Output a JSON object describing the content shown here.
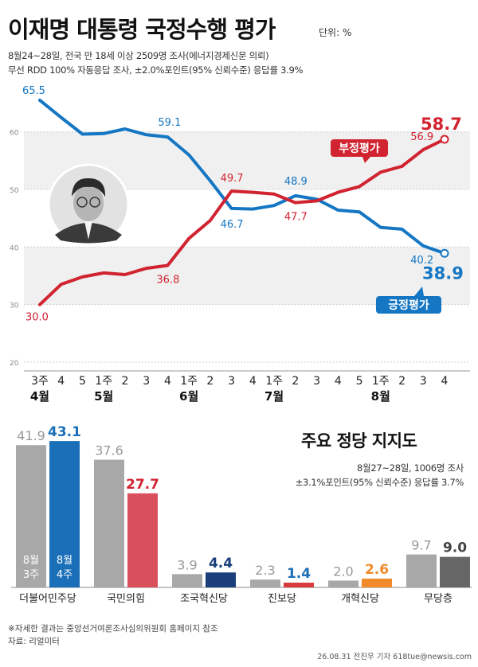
{
  "header": {
    "title": "이재명 대통령 국정수행 평가",
    "unit": "단위: %",
    "sub1": "8월24~28일, 전국 만 18세 이상 2509명 조사(에너지경제신문 의뢰)",
    "sub2": "무선 RDD 100% 자동응답 조사, ±2.0%포인트(95% 신뢰수준) 응답률 3.9%"
  },
  "colors": {
    "positive": "#1577c4",
    "negative": "#d12330",
    "gridband": "#f0f0f0",
    "bar_prev": "#a8a8a8"
  },
  "chart_data": [
    {
      "type": "line",
      "x": [
        "3주",
        "4",
        "5",
        "1주",
        "2",
        "3",
        "4",
        "1주",
        "2",
        "3",
        "4",
        "1주",
        "2",
        "3",
        "4",
        "5",
        "1주",
        "2",
        "3",
        "4"
      ],
      "x_groups": [
        {
          "label": "4월",
          "index": 0
        },
        {
          "label": "5월",
          "index": 3
        },
        {
          "label": "6월",
          "index": 7
        },
        {
          "label": "7월",
          "index": 11
        },
        {
          "label": "8월",
          "index": 16
        }
      ],
      "ylim": [
        20,
        67
      ],
      "yticks": [
        20,
        30,
        40,
        50,
        60
      ],
      "series": [
        {
          "name": "긍정평가",
          "color": "#1577c4",
          "values": [
            65.5,
            62.5,
            59.6,
            59.7,
            60.5,
            59.5,
            59.1,
            56.0,
            51.5,
            46.7,
            46.6,
            47.2,
            48.9,
            48.3,
            46.4,
            46.1,
            43.4,
            43.1,
            40.2,
            38.9
          ]
        },
        {
          "name": "부정평가",
          "color": "#d12330",
          "values": [
            30.0,
            33.5,
            34.8,
            35.5,
            35.2,
            36.3,
            36.8,
            41.5,
            44.6,
            49.7,
            49.5,
            49.2,
            47.7,
            48.0,
            49.5,
            50.5,
            53.0,
            54.0,
            56.9,
            58.7
          ]
        }
      ],
      "labels": {
        "positive": [
          {
            "index": 0,
            "text": "65.5"
          },
          {
            "index": 6,
            "text": "59.1"
          },
          {
            "index": 9,
            "text": "46.7"
          },
          {
            "index": 12,
            "text": "48.9"
          },
          {
            "index": 18,
            "text": "40.2"
          },
          {
            "index": 19,
            "text": "38.9"
          }
        ],
        "negative": [
          {
            "index": 0,
            "text": "30.0"
          },
          {
            "index": 6,
            "text": "36.8"
          },
          {
            "index": 9,
            "text": "49.7"
          },
          {
            "index": 12,
            "text": "47.7"
          },
          {
            "index": 18,
            "text": "56.9"
          },
          {
            "index": 19,
            "text": "58.7"
          }
        ]
      }
    },
    {
      "type": "bar",
      "title": "주요 정당 지지도",
      "categories": [
        "더불어민주당",
        "국민의힘",
        "조국혁신당",
        "진보당",
        "개혁신당",
        "무당층"
      ],
      "series": [
        {
          "name": "8월 3주",
          "values": [
            41.9,
            37.6,
            3.9,
            2.3,
            2.0,
            9.7
          ]
        },
        {
          "name": "8월 4주",
          "values": [
            43.1,
            27.7,
            4.4,
            1.4,
            2.6,
            9.0
          ]
        }
      ],
      "party_colors": [
        "#1a6fb8",
        "#d9505c",
        "#1a3f7a",
        "#d73a3a",
        "#f08a2a",
        "#666666"
      ],
      "label_colors": [
        "#1a6fb8",
        "#d12330",
        "#1a3f7a",
        "#1a6fb8",
        "#f08a2a",
        "#444444"
      ],
      "ylim": [
        0,
        45
      ]
    }
  ],
  "bars_section": {
    "title": "주요 정당 지지도",
    "sub1": "8월27~28일, 1006명 조사",
    "sub2": "±3.1%포인트(95% 신뢰수준) 응답률 3.7%",
    "legend_prev": [
      "8월",
      "3주"
    ],
    "legend_curr": [
      "8월",
      "4주"
    ]
  },
  "footer": {
    "note": "※자세한 결과는 중앙선거여론조사심의위원회 홈페이지 참조",
    "source": "자료: 리얼미터",
    "credit": "26.08.31 전진우 기자 618tue@newsis.com"
  }
}
